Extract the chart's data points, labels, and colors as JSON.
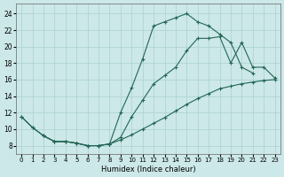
{
  "bg_color": "#cce8e8",
  "grid_color": "#aad0d0",
  "line_color": "#226655",
  "xlabel": "Humidex (Indice chaleur)",
  "xlim": [
    -0.5,
    23.5
  ],
  "ylim": [
    7.0,
    25.2
  ],
  "xticks": [
    0,
    1,
    2,
    3,
    4,
    5,
    6,
    7,
    8,
    9,
    10,
    11,
    12,
    13,
    14,
    15,
    16,
    17,
    18,
    19,
    20,
    21,
    22,
    23
  ],
  "yticks": [
    8,
    10,
    12,
    14,
    16,
    18,
    20,
    22,
    24
  ],
  "c1x": [
    0,
    1,
    2,
    3,
    4,
    5,
    6,
    7,
    8,
    9,
    10,
    11,
    12,
    13,
    14,
    15,
    16,
    17,
    18,
    19,
    20,
    21
  ],
  "c1y": [
    11.5,
    10.2,
    9.2,
    8.5,
    8.5,
    8.3,
    8.0,
    8.0,
    8.2,
    12.0,
    15.0,
    18.5,
    22.5,
    23.0,
    23.5,
    24.0,
    23.0,
    22.5,
    21.5,
    20.5,
    17.5,
    16.8
  ],
  "c2x": [
    2,
    3,
    4,
    5,
    6,
    7,
    8,
    9,
    10,
    11,
    12,
    13,
    14,
    15,
    16,
    17,
    18,
    19,
    20,
    21,
    22,
    23
  ],
  "c2y": [
    9.2,
    8.5,
    8.5,
    8.3,
    8.0,
    8.0,
    8.2,
    9.0,
    11.5,
    13.5,
    15.5,
    16.5,
    17.5,
    19.5,
    21.0,
    21.0,
    21.2,
    18.0,
    20.5,
    17.5,
    17.5,
    16.2
  ],
  "c3x": [
    0,
    1,
    2,
    3,
    4,
    5,
    6,
    7,
    8,
    9,
    10,
    11,
    12,
    13,
    14,
    15,
    16,
    17,
    18,
    19,
    20,
    21,
    22,
    23
  ],
  "c3y": [
    11.5,
    10.2,
    9.2,
    8.5,
    8.5,
    8.3,
    8.0,
    8.0,
    8.2,
    8.7,
    9.3,
    10.0,
    10.7,
    11.4,
    12.2,
    13.0,
    13.7,
    14.3,
    14.9,
    15.2,
    15.5,
    15.7,
    15.9,
    16.0
  ]
}
